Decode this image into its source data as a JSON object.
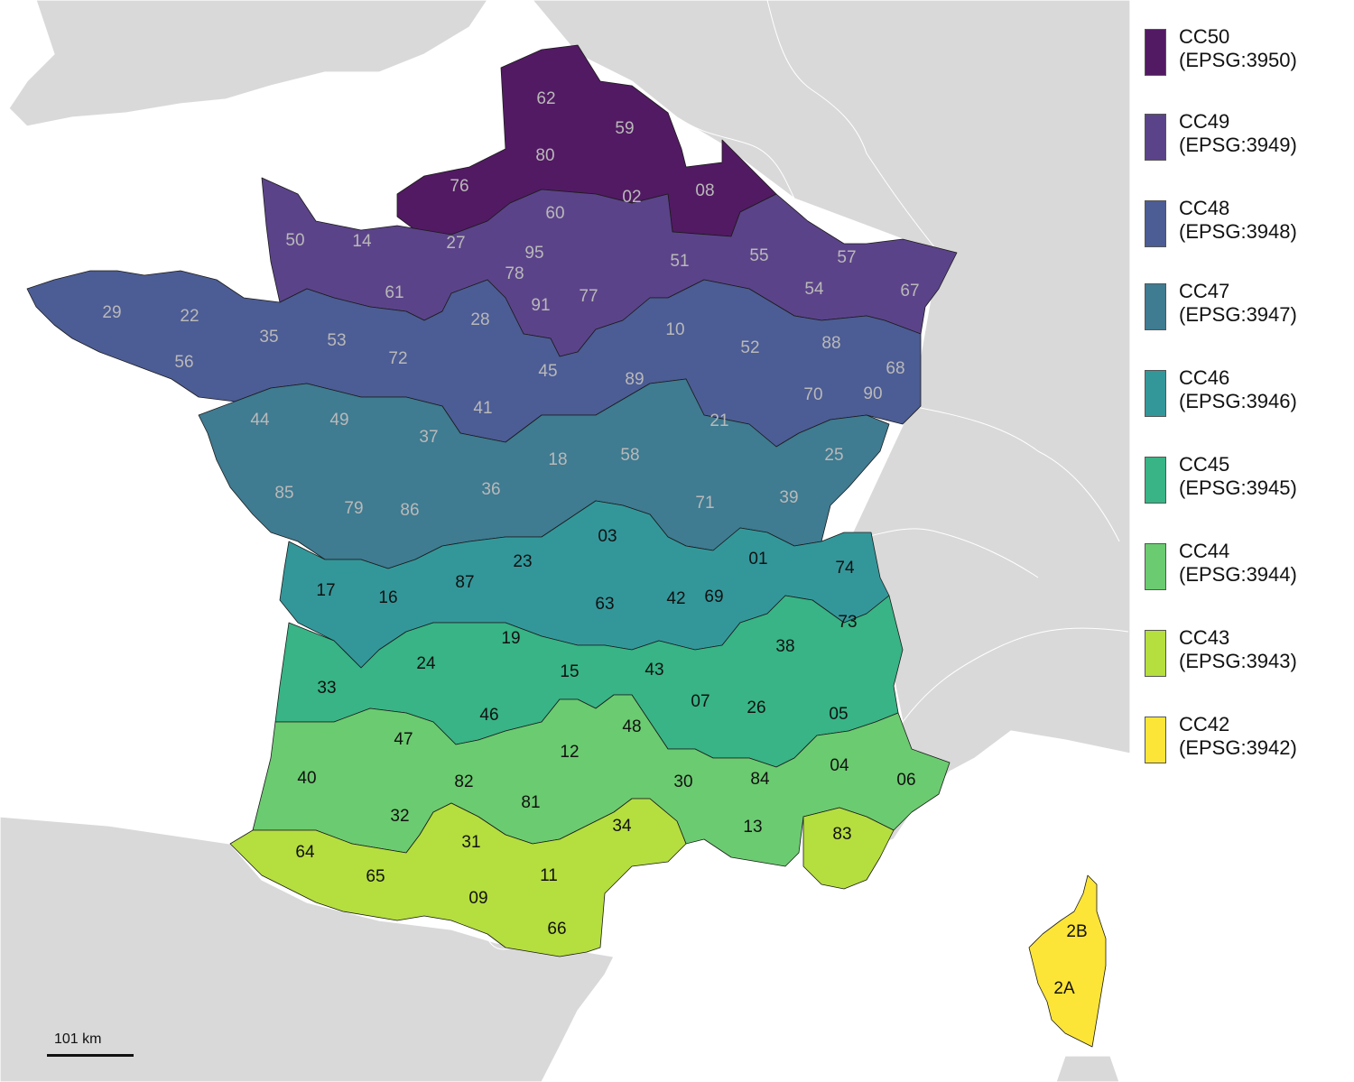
{
  "legend": {
    "items": [
      {
        "zone": "CC50",
        "code": "(EPSG:3950)",
        "color": "#521a63"
      },
      {
        "zone": "CC49",
        "code": "(EPSG:3949)",
        "color": "#5b4389"
      },
      {
        "zone": "CC48",
        "code": "(EPSG:3948)",
        "color": "#4c5c94"
      },
      {
        "zone": "CC47",
        "code": "(EPSG:3947)",
        "color": "#3f7b91"
      },
      {
        "zone": "CC46",
        "code": "(EPSG:3946)",
        "color": "#33979a"
      },
      {
        "zone": "CC45",
        "code": "(EPSG:3945)",
        "color": "#38b486"
      },
      {
        "zone": "CC44",
        "code": "(EPSG:3944)",
        "color": "#6bcb70"
      },
      {
        "zone": "CC43",
        "code": "(EPSG:3943)",
        "color": "#b5de3f"
      },
      {
        "zone": "CC42",
        "code": "(EPSG:3942)",
        "color": "#fde538"
      }
    ]
  },
  "scalebar": {
    "label": "101 km"
  },
  "colors": {
    "land": "#d9d9d9",
    "label_light": "#b9b9b9",
    "label_dark": "#111111"
  },
  "departments": [
    {
      "code": "62",
      "zone": "CC50"
    },
    {
      "code": "59",
      "zone": "CC50"
    },
    {
      "code": "80",
      "zone": "CC50"
    },
    {
      "code": "76",
      "zone": "CC50"
    },
    {
      "code": "08",
      "zone": "CC50"
    },
    {
      "code": "02",
      "zone": "CC49"
    },
    {
      "code": "60",
      "zone": "CC49"
    },
    {
      "code": "50",
      "zone": "CC49"
    },
    {
      "code": "14",
      "zone": "CC49"
    },
    {
      "code": "27",
      "zone": "CC49"
    },
    {
      "code": "95",
      "zone": "CC49"
    },
    {
      "code": "51",
      "zone": "CC49"
    },
    {
      "code": "55",
      "zone": "CC49"
    },
    {
      "code": "57",
      "zone": "CC49"
    },
    {
      "code": "78",
      "zone": "CC49"
    },
    {
      "code": "61",
      "zone": "CC49"
    },
    {
      "code": "91",
      "zone": "CC49"
    },
    {
      "code": "77",
      "zone": "CC49"
    },
    {
      "code": "54",
      "zone": "CC49"
    },
    {
      "code": "67",
      "zone": "CC49"
    },
    {
      "code": "29",
      "zone": "CC48"
    },
    {
      "code": "22",
      "zone": "CC48"
    },
    {
      "code": "35",
      "zone": "CC48"
    },
    {
      "code": "53",
      "zone": "CC48"
    },
    {
      "code": "28",
      "zone": "CC48"
    },
    {
      "code": "10",
      "zone": "CC48"
    },
    {
      "code": "52",
      "zone": "CC48"
    },
    {
      "code": "88",
      "zone": "CC48"
    },
    {
      "code": "56",
      "zone": "CC48"
    },
    {
      "code": "72",
      "zone": "CC48"
    },
    {
      "code": "45",
      "zone": "CC48"
    },
    {
      "code": "89",
      "zone": "CC48"
    },
    {
      "code": "68",
      "zone": "CC48"
    },
    {
      "code": "70",
      "zone": "CC48"
    },
    {
      "code": "90",
      "zone": "CC48"
    },
    {
      "code": "41",
      "zone": "CC48"
    },
    {
      "code": "44",
      "zone": "CC47"
    },
    {
      "code": "49",
      "zone": "CC47"
    },
    {
      "code": "37",
      "zone": "CC47"
    },
    {
      "code": "21",
      "zone": "CC47"
    },
    {
      "code": "25",
      "zone": "CC47"
    },
    {
      "code": "18",
      "zone": "CC47"
    },
    {
      "code": "58",
      "zone": "CC47"
    },
    {
      "code": "85",
      "zone": "CC47"
    },
    {
      "code": "36",
      "zone": "CC47"
    },
    {
      "code": "39",
      "zone": "CC47"
    },
    {
      "code": "79",
      "zone": "CC47"
    },
    {
      "code": "86",
      "zone": "CC47"
    },
    {
      "code": "71",
      "zone": "CC47"
    },
    {
      "code": "03",
      "zone": "CC46"
    },
    {
      "code": "23",
      "zone": "CC46"
    },
    {
      "code": "01",
      "zone": "CC46"
    },
    {
      "code": "74",
      "zone": "CC46"
    },
    {
      "code": "87",
      "zone": "CC46"
    },
    {
      "code": "17",
      "zone": "CC46"
    },
    {
      "code": "16",
      "zone": "CC46"
    },
    {
      "code": "63",
      "zone": "CC46"
    },
    {
      "code": "42",
      "zone": "CC46"
    },
    {
      "code": "69",
      "zone": "CC46"
    },
    {
      "code": "73",
      "zone": "CC45"
    },
    {
      "code": "19",
      "zone": "CC45"
    },
    {
      "code": "38",
      "zone": "CC45"
    },
    {
      "code": "24",
      "zone": "CC45"
    },
    {
      "code": "15",
      "zone": "CC45"
    },
    {
      "code": "43",
      "zone": "CC45"
    },
    {
      "code": "33",
      "zone": "CC45"
    },
    {
      "code": "07",
      "zone": "CC45"
    },
    {
      "code": "26",
      "zone": "CC45"
    },
    {
      "code": "46",
      "zone": "CC45"
    },
    {
      "code": "05",
      "zone": "CC45"
    },
    {
      "code": "48",
      "zone": "CC44"
    },
    {
      "code": "47",
      "zone": "CC44"
    },
    {
      "code": "12",
      "zone": "CC44"
    },
    {
      "code": "04",
      "zone": "CC44"
    },
    {
      "code": "40",
      "zone": "CC44"
    },
    {
      "code": "30",
      "zone": "CC44"
    },
    {
      "code": "82",
      "zone": "CC44"
    },
    {
      "code": "84",
      "zone": "CC44"
    },
    {
      "code": "06",
      "zone": "CC44"
    },
    {
      "code": "81",
      "zone": "CC44"
    },
    {
      "code": "32",
      "zone": "CC44"
    },
    {
      "code": "13",
      "zone": "CC44"
    },
    {
      "code": "34",
      "zone": "CC43"
    },
    {
      "code": "83",
      "zone": "CC43"
    },
    {
      "code": "31",
      "zone": "CC43"
    },
    {
      "code": "64",
      "zone": "CC43"
    },
    {
      "code": "65",
      "zone": "CC43"
    },
    {
      "code": "11",
      "zone": "CC43"
    },
    {
      "code": "09",
      "zone": "CC43"
    },
    {
      "code": "66",
      "zone": "CC43"
    },
    {
      "code": "2B",
      "zone": "CC42"
    },
    {
      "code": "2A",
      "zone": "CC42"
    }
  ]
}
